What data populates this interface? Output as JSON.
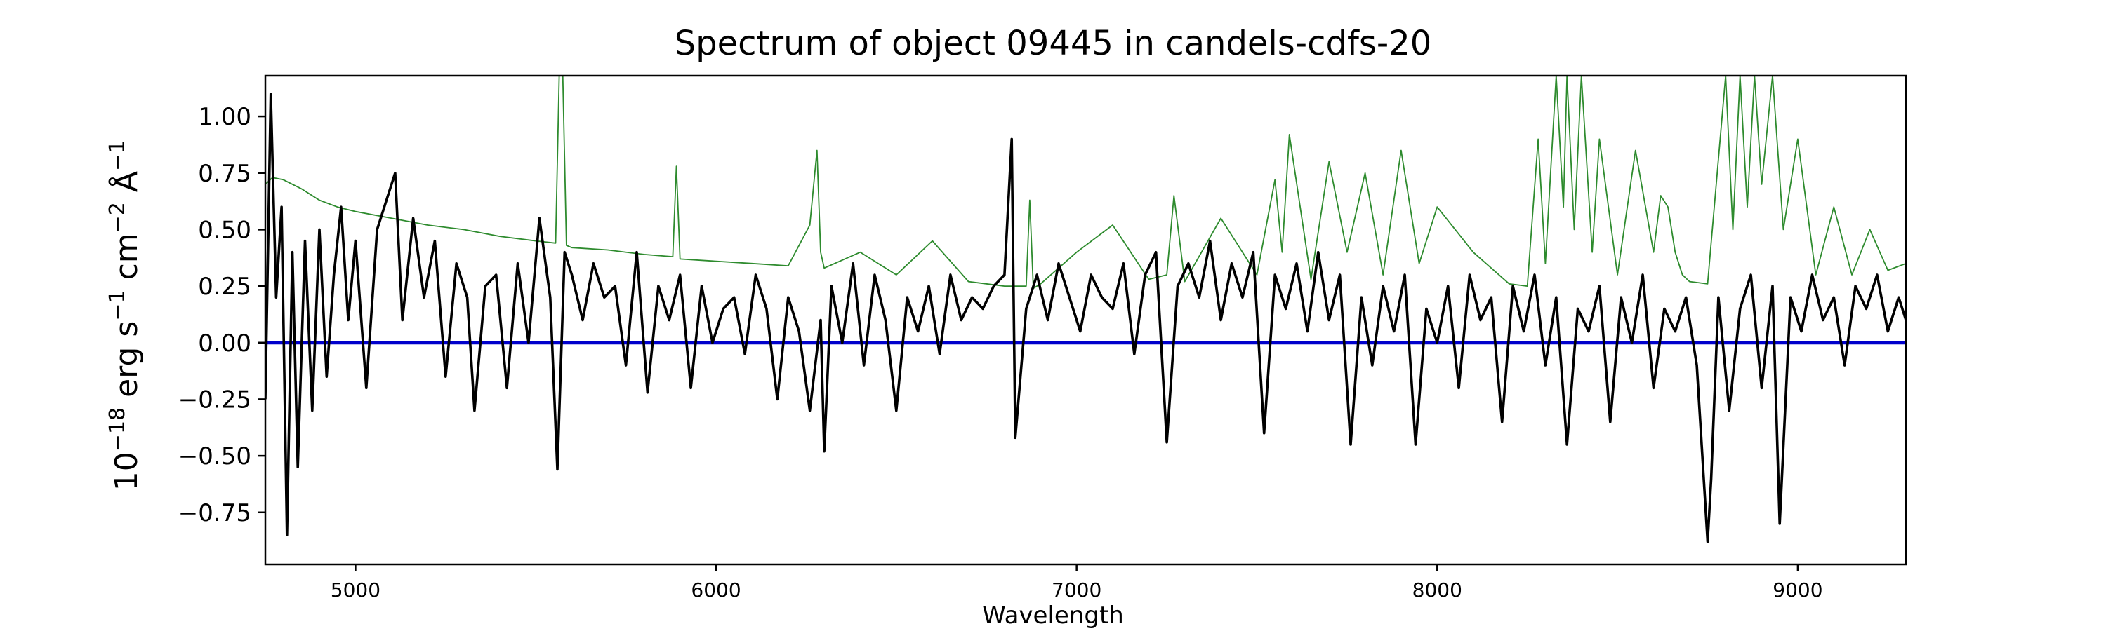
{
  "chart_data": {
    "type": "line",
    "title": "Spectrum of object 09445 in candels-cdfs-20",
    "xlabel": "Wavelength",
    "ylabel": {
      "base": "10",
      "exp1": "−18",
      "unit1": " erg s",
      "exp2": "−1",
      "unit2": " cm",
      "exp3": "−2",
      "unit3": " Å",
      "exp4": "−1"
    },
    "xlim": [
      4750,
      9300
    ],
    "ylim": [
      -0.98,
      1.18
    ],
    "xticks": [
      5000,
      6000,
      7000,
      8000,
      9000
    ],
    "xtick_labels": [
      "5000",
      "6000",
      "7000",
      "8000",
      "9000"
    ],
    "yticks": [
      -0.75,
      -0.5,
      -0.25,
      0.0,
      0.25,
      0.5,
      0.75,
      1.0
    ],
    "ytick_labels": [
      "−0.75",
      "−0.50",
      "−0.25",
      "0.00",
      "0.25",
      "0.50",
      "0.75",
      "1.00"
    ],
    "grid": false,
    "legend": "none",
    "colors": {
      "flux": "#000000",
      "error": "#2e8b2e",
      "zero": "#0000cc"
    },
    "series": [
      {
        "key": "flux",
        "x": [
          4750,
          4765,
          4780,
          4795,
          4810,
          4825,
          4840,
          4860,
          4880,
          4900,
          4920,
          4940,
          4960,
          4980,
          5000,
          5030,
          5060,
          5090,
          5110,
          5130,
          5160,
          5190,
          5220,
          5250,
          5280,
          5310,
          5330,
          5360,
          5390,
          5420,
          5450,
          5480,
          5510,
          5540,
          5560,
          5580,
          5600,
          5630,
          5660,
          5690,
          5720,
          5750,
          5780,
          5810,
          5840,
          5870,
          5900,
          5930,
          5960,
          5990,
          6020,
          6050,
          6080,
          6110,
          6140,
          6170,
          6200,
          6230,
          6260,
          6290,
          6300,
          6320,
          6350,
          6380,
          6410,
          6440,
          6470,
          6500,
          6530,
          6560,
          6590,
          6620,
          6650,
          6680,
          6710,
          6740,
          6770,
          6800,
          6820,
          6830,
          6860,
          6890,
          6920,
          6950,
          6980,
          7010,
          7040,
          7070,
          7100,
          7130,
          7160,
          7190,
          7220,
          7250,
          7280,
          7310,
          7340,
          7370,
          7400,
          7430,
          7460,
          7490,
          7520,
          7550,
          7580,
          7610,
          7640,
          7670,
          7700,
          7730,
          7760,
          7790,
          7820,
          7850,
          7880,
          7910,
          7940,
          7970,
          8000,
          8030,
          8060,
          8090,
          8120,
          8150,
          8180,
          8210,
          8240,
          8270,
          8300,
          8330,
          8360,
          8390,
          8420,
          8450,
          8480,
          8510,
          8540,
          8570,
          8600,
          8630,
          8660,
          8690,
          8720,
          8750,
          8760,
          8780,
          8810,
          8840,
          8870,
          8900,
          8930,
          8950,
          8980,
          9010,
          9040,
          9070,
          9100,
          9130,
          9160,
          9190,
          9220,
          9250,
          9280,
          9300
        ],
        "y": [
          -0.25,
          1.1,
          0.2,
          0.6,
          -0.85,
          0.4,
          -0.55,
          0.45,
          -0.3,
          0.5,
          -0.15,
          0.3,
          0.6,
          0.1,
          0.45,
          -0.2,
          0.5,
          0.65,
          0.75,
          0.1,
          0.55,
          0.2,
          0.45,
          -0.15,
          0.35,
          0.2,
          -0.3,
          0.25,
          0.3,
          -0.2,
          0.35,
          0.0,
          0.55,
          0.2,
          -0.56,
          0.4,
          0.3,
          0.1,
          0.35,
          0.2,
          0.25,
          -0.1,
          0.4,
          -0.22,
          0.25,
          0.1,
          0.3,
          -0.2,
          0.25,
          0.0,
          0.15,
          0.2,
          -0.05,
          0.3,
          0.15,
          -0.25,
          0.2,
          0.05,
          -0.3,
          0.1,
          -0.48,
          0.25,
          0.0,
          0.35,
          -0.1,
          0.3,
          0.1,
          -0.3,
          0.2,
          0.05,
          0.25,
          -0.05,
          0.3,
          0.1,
          0.2,
          0.15,
          0.25,
          0.3,
          0.9,
          -0.42,
          0.15,
          0.3,
          0.1,
          0.35,
          0.2,
          0.05,
          0.3,
          0.2,
          0.15,
          0.35,
          -0.05,
          0.3,
          0.4,
          -0.44,
          0.25,
          0.35,
          0.2,
          0.45,
          0.1,
          0.35,
          0.2,
          0.4,
          -0.4,
          0.3,
          0.15,
          0.35,
          0.05,
          0.4,
          0.1,
          0.3,
          -0.45,
          0.2,
          -0.1,
          0.25,
          0.05,
          0.3,
          -0.45,
          0.15,
          0.0,
          0.25,
          -0.2,
          0.3,
          0.1,
          0.2,
          -0.35,
          0.25,
          0.05,
          0.3,
          -0.1,
          0.2,
          -0.45,
          0.15,
          0.05,
          0.25,
          -0.35,
          0.2,
          0.0,
          0.3,
          -0.2,
          0.15,
          0.05,
          0.2,
          -0.1,
          -0.88,
          -0.6,
          0.2,
          -0.3,
          0.15,
          0.3,
          -0.2,
          0.25,
          -0.8,
          0.2,
          0.05,
          0.3,
          0.1,
          0.2,
          -0.1,
          0.25,
          0.15,
          0.3,
          0.05,
          0.2,
          0.1
        ]
      },
      {
        "key": "error",
        "x": [
          4750,
          4770,
          4800,
          4850,
          4900,
          4950,
          5000,
          5100,
          5200,
          5300,
          5400,
          5500,
          5555,
          5565,
          5575,
          5585,
          5600,
          5700,
          5800,
          5880,
          5890,
          5900,
          6000,
          6100,
          6200,
          6260,
          6280,
          6290,
          6300,
          6400,
          6500,
          6600,
          6700,
          6800,
          6860,
          6870,
          6880,
          6900,
          7000,
          7100,
          7200,
          7250,
          7270,
          7300,
          7400,
          7500,
          7550,
          7570,
          7590,
          7650,
          7700,
          7750,
          7800,
          7850,
          7900,
          7950,
          8000,
          8100,
          8200,
          8250,
          8280,
          8300,
          8330,
          8350,
          8360,
          8380,
          8400,
          8430,
          8450,
          8500,
          8550,
          8600,
          8620,
          8640,
          8660,
          8680,
          8700,
          8750,
          8800,
          8820,
          8840,
          8860,
          8880,
          8900,
          8930,
          8960,
          9000,
          9050,
          9100,
          9150,
          9200,
          9250,
          9300
        ],
        "y": [
          0.7,
          0.73,
          0.72,
          0.68,
          0.63,
          0.6,
          0.58,
          0.55,
          0.52,
          0.5,
          0.47,
          0.45,
          0.44,
          1.18,
          1.18,
          0.43,
          0.42,
          0.41,
          0.39,
          0.38,
          0.78,
          0.37,
          0.36,
          0.35,
          0.34,
          0.52,
          0.85,
          0.4,
          0.33,
          0.4,
          0.3,
          0.45,
          0.27,
          0.25,
          0.25,
          0.63,
          0.24,
          0.26,
          0.4,
          0.52,
          0.28,
          0.3,
          0.65,
          0.27,
          0.55,
          0.3,
          0.72,
          0.4,
          0.92,
          0.28,
          0.8,
          0.4,
          0.75,
          0.3,
          0.85,
          0.35,
          0.6,
          0.4,
          0.26,
          0.25,
          0.9,
          0.35,
          1.18,
          0.6,
          1.18,
          0.5,
          1.18,
          0.4,
          0.9,
          0.3,
          0.85,
          0.4,
          0.65,
          0.6,
          0.4,
          0.3,
          0.27,
          0.26,
          1.18,
          0.5,
          1.18,
          0.6,
          1.18,
          0.7,
          1.18,
          0.5,
          0.9,
          0.3,
          0.6,
          0.3,
          0.5,
          0.32,
          0.35
        ]
      },
      {
        "key": "zero",
        "x": [
          4750,
          9300
        ],
        "y": [
          0,
          0
        ]
      }
    ]
  }
}
